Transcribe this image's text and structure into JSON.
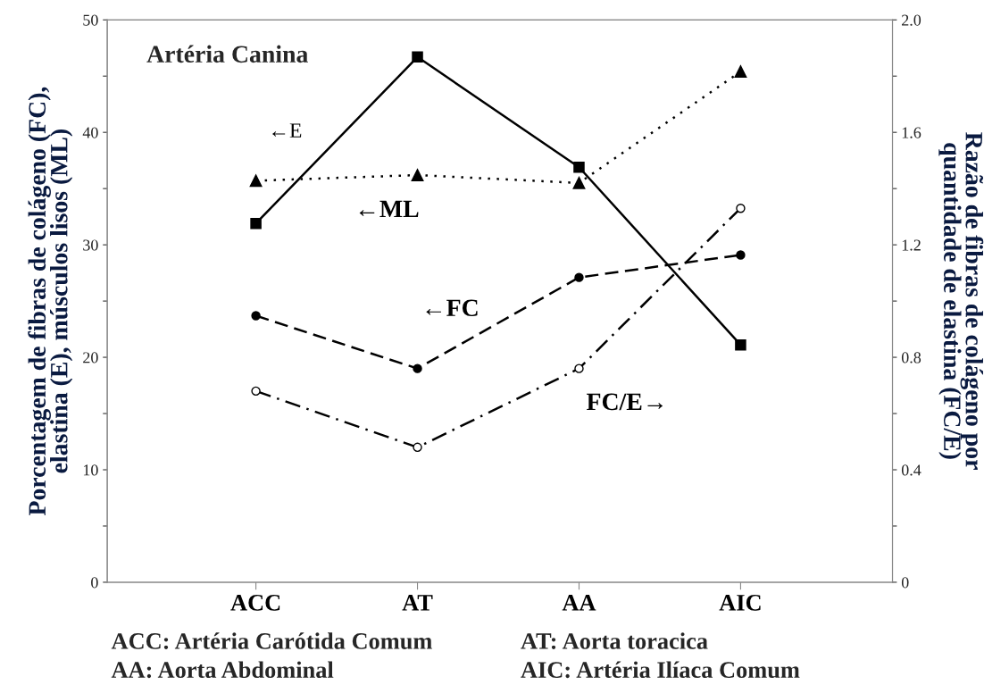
{
  "chart_data": {
    "type": "line",
    "title": "Artéria Canina",
    "ylabel": "Porcentagem de fibras de colágeno (FC),\nelastina (E), músculos lisos (ML)",
    "y2label": "Razão de fibras de colágeno por\nquantidade de elastina (FC/E)",
    "categories": [
      "ACC",
      "AT",
      "AA",
      "AIC"
    ],
    "series": [
      {
        "name": "←E",
        "color": "#000000",
        "marker": "square",
        "line_style": "solid",
        "values": [
          31.9,
          46.7,
          36.9,
          21.1
        ]
      },
      {
        "name": "←ML",
        "color": "#000000",
        "marker": "triangle",
        "line_style": "dotted",
        "values": [
          35.7,
          36.2,
          35.5,
          45.4
        ]
      },
      {
        "name": "←FC",
        "color": "#000000",
        "marker": "circle",
        "line_style": "dashed",
        "values": [
          23.7,
          19.0,
          27.1,
          29.1
        ]
      },
      {
        "name": "FC/E→",
        "color": "#000000",
        "marker": "open circle",
        "line_style": "dashdot",
        "axis": "y2",
        "values": [
          0.68,
          0.48,
          0.76,
          1.33
        ]
      }
    ],
    "ylim": [
      0,
      50
    ],
    "yticks": [
      0,
      {
        "value": 5,
        "label": null
      },
      10,
      {
        "value": 15,
        "label": null
      },
      20,
      {
        "value": 25,
        "label": null
      },
      30,
      {
        "value": 35,
        "label": null
      },
      40,
      {
        "value": 45,
        "label": null
      },
      50
    ],
    "y2lim": [
      0,
      2.0
    ],
    "y2ticks": [
      0,
      {
        "value": 0.2,
        "label": null
      },
      0.4,
      {
        "value": 0.6,
        "label": null
      },
      0.8,
      {
        "value": 1.0,
        "label": null
      },
      1.2,
      {
        "value": 1.4,
        "label": null
      },
      1.6,
      {
        "value": 1.8,
        "label": null
      },
      {
        "value": 2.0,
        "label": "2.0"
      }
    ],
    "grid": false,
    "legend": false,
    "annotations": [
      "ACC: Artéria Carótida Comum",
      "AT: Aorta toracica",
      "AA: Aorta Abdominal",
      "AIC: Artéria Ilíaca Comum"
    ]
  }
}
